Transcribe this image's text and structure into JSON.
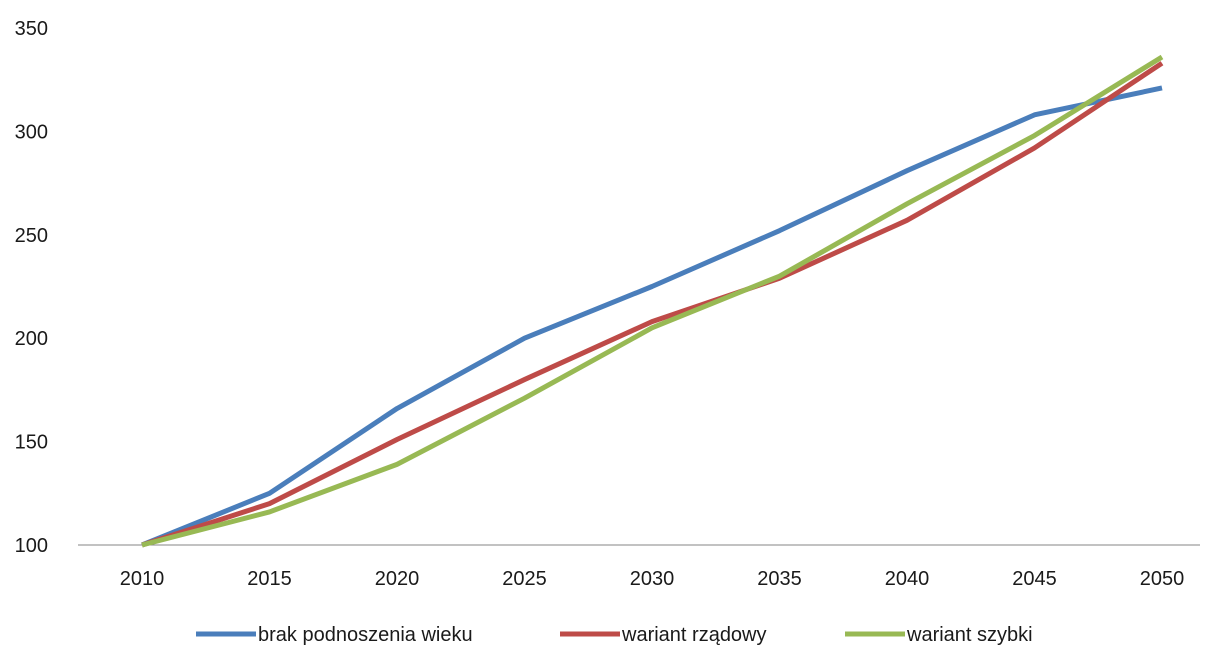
{
  "chart_data": {
    "type": "line",
    "title": "",
    "xlabel": "",
    "ylabel": "",
    "x": [
      2010,
      2015,
      2020,
      2025,
      2030,
      2035,
      2040,
      2045,
      2050
    ],
    "x_tick_labels": [
      "2010",
      "2015",
      "2020",
      "2025",
      "2030",
      "2035",
      "2040",
      "2045",
      "2050"
    ],
    "ylim": [
      100,
      350
    ],
    "y_ticks": [
      100,
      150,
      200,
      250,
      300,
      350
    ],
    "y_tick_labels": [
      "100",
      "150",
      "200",
      "250",
      "300",
      "350"
    ],
    "grid": false,
    "legend_position": "bottom",
    "series": [
      {
        "name": "brak podnoszenia wieku",
        "color": "#4a7ebb",
        "values": [
          100,
          125,
          166,
          200,
          225,
          252,
          281,
          308,
          321
        ]
      },
      {
        "name": "wariant rządowy",
        "color": "#be4b48",
        "values": [
          100,
          120,
          151,
          180,
          208,
          229,
          257,
          292,
          333
        ]
      },
      {
        "name": "wariant szybki",
        "color": "#98b954",
        "values": [
          100,
          116,
          139,
          171,
          205,
          230,
          265,
          298,
          336
        ]
      }
    ]
  }
}
